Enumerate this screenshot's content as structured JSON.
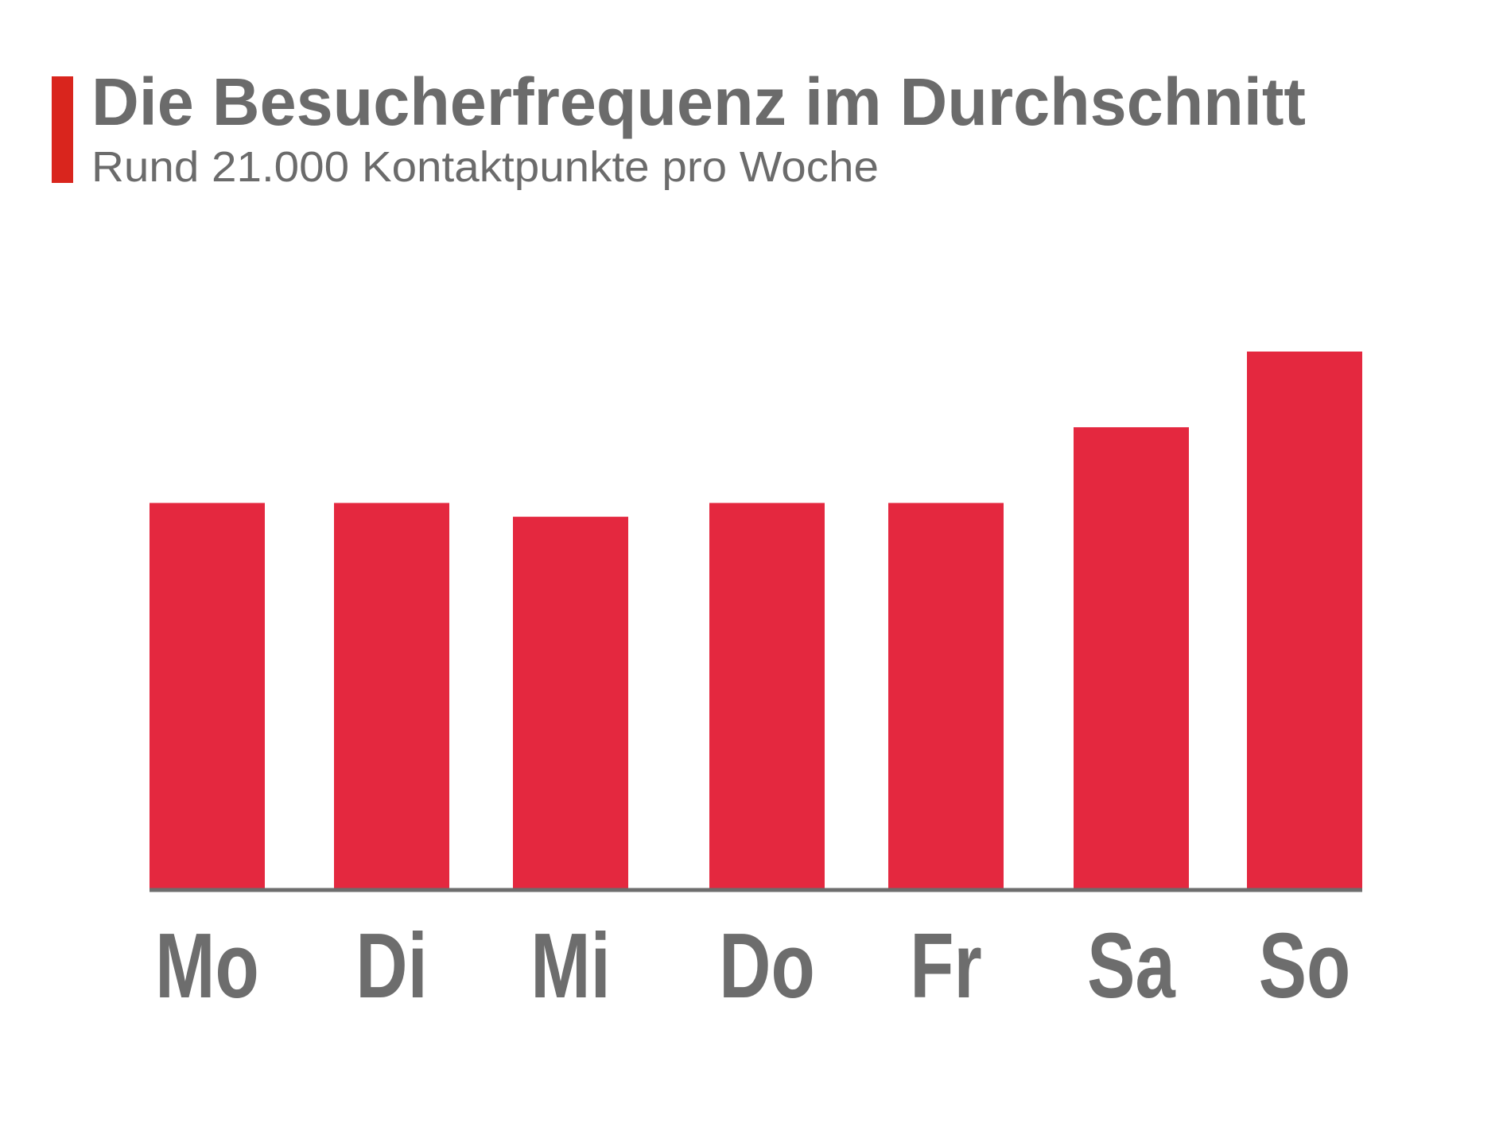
{
  "chart_data": {
    "type": "bar",
    "title": "Die Besucherfrequenz im Durchschnitt",
    "subtitle": "Rund 21.000 Kontaktpunkte pro Woche",
    "categories": [
      "Mo",
      "Di",
      "Mi",
      "Do",
      "Fr",
      "Sa",
      "So"
    ],
    "values": [
      2800,
      2800,
      2700,
      2800,
      2800,
      3350,
      3900
    ],
    "xlabel": "",
    "ylabel": "",
    "ylim": [
      0,
      3900
    ],
    "y_axis_shown": false,
    "grid": false,
    "legend": "none",
    "colors": {
      "bar": "#E4283F",
      "accent": "#D9251D",
      "text": "#6B6B6B",
      "baseline": "#6D6D6D"
    }
  }
}
